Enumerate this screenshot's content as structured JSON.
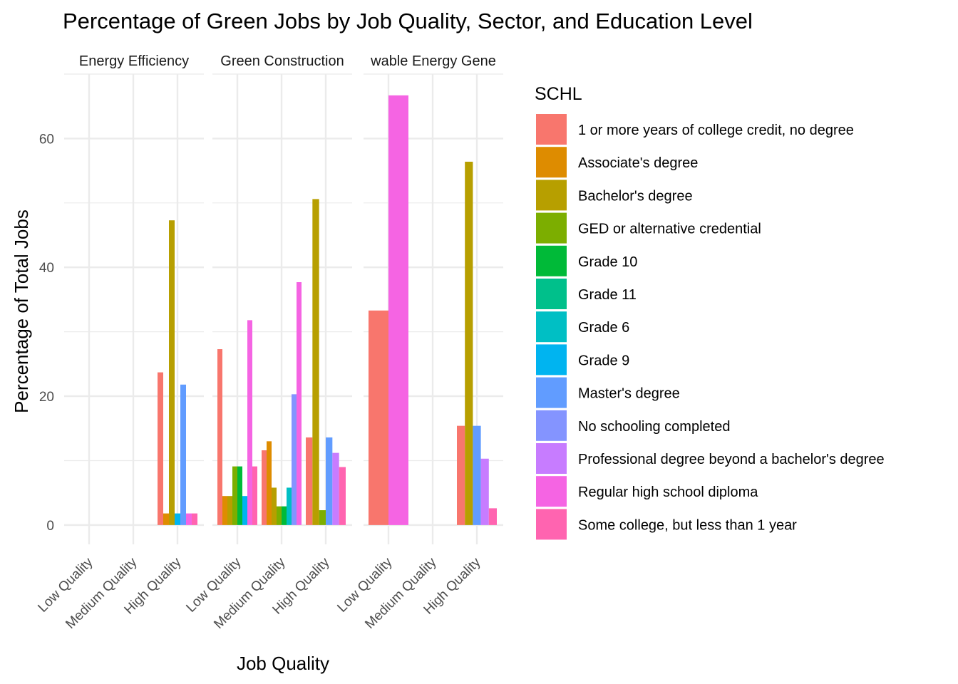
{
  "chart_data": {
    "type": "bar",
    "title": "Percentage of Green Jobs by Job Quality, Sector, and Education Level",
    "xlabel": "Job Quality",
    "ylabel": "Percentage of Total Jobs",
    "ylim": [
      -3,
      70
    ],
    "yticks": [
      0,
      20,
      40,
      60
    ],
    "grid": true,
    "legend_title": "SCHL",
    "legend_position": "right",
    "categories": [
      "Low Quality",
      "Medium Quality",
      "High Quality"
    ],
    "facets": [
      {
        "label": "Energy Efficiency",
        "shown_label": "Energy Efficiency"
      },
      {
        "label": "Green Construction",
        "shown_label": "Green Construction"
      },
      {
        "label": "Renewable Energy Generation",
        "shown_label": "wable Energy Gene"
      }
    ],
    "series": [
      {
        "name": "1 or more years of college credit, no degree",
        "color": "#F8766D",
        "values": [
          [
            null,
            null,
            23.7
          ],
          [
            27.3,
            11.6,
            13.6
          ],
          [
            33.3,
            null,
            15.4
          ]
        ]
      },
      {
        "name": "Associate's degree",
        "color": "#DE8C00",
        "values": [
          [
            null,
            null,
            1.8
          ],
          [
            4.5,
            13.0,
            null
          ],
          [
            null,
            null,
            null
          ]
        ]
      },
      {
        "name": "Bachelor's degree",
        "color": "#B79F00",
        "values": [
          [
            null,
            null,
            47.3
          ],
          [
            4.5,
            5.8,
            50.6
          ],
          [
            null,
            null,
            56.4
          ]
        ]
      },
      {
        "name": "GED or alternative credential",
        "color": "#7CAE00",
        "values": [
          [
            null,
            null,
            null
          ],
          [
            9.1,
            2.9,
            2.3
          ],
          [
            null,
            null,
            null
          ]
        ]
      },
      {
        "name": "Grade 10",
        "color": "#00BA38",
        "values": [
          [
            null,
            null,
            null
          ],
          [
            9.1,
            2.9,
            null
          ],
          [
            null,
            null,
            null
          ]
        ]
      },
      {
        "name": "Grade 11",
        "color": "#00C08B",
        "values": [
          [
            null,
            null,
            null
          ],
          [
            null,
            null,
            null
          ],
          [
            null,
            null,
            null
          ]
        ]
      },
      {
        "name": "Grade 6",
        "color": "#00BFC4",
        "values": [
          [
            null,
            null,
            null
          ],
          [
            null,
            5.8,
            null
          ],
          [
            null,
            null,
            null
          ]
        ]
      },
      {
        "name": "Grade 9",
        "color": "#00B4F0",
        "values": [
          [
            null,
            null,
            1.8
          ],
          [
            4.5,
            null,
            null
          ],
          [
            null,
            null,
            null
          ]
        ]
      },
      {
        "name": "Master's degree",
        "color": "#619CFF",
        "values": [
          [
            null,
            null,
            21.8
          ],
          [
            null,
            null,
            13.6
          ],
          [
            null,
            null,
            15.4
          ]
        ]
      },
      {
        "name": "No schooling completed",
        "color": "#8494FF",
        "values": [
          [
            null,
            null,
            null
          ],
          [
            null,
            20.3,
            null
          ],
          [
            null,
            null,
            null
          ]
        ]
      },
      {
        "name": "Professional degree beyond a bachelor's degree",
        "color": "#C77CFF",
        "values": [
          [
            null,
            null,
            null
          ],
          [
            null,
            null,
            11.2
          ],
          [
            null,
            null,
            10.3
          ]
        ]
      },
      {
        "name": "Regular high school diploma",
        "color": "#F564E3",
        "values": [
          [
            null,
            null,
            1.8
          ],
          [
            31.8,
            37.7,
            null
          ],
          [
            66.7,
            null,
            null
          ]
        ]
      },
      {
        "name": "Some college, but less than 1 year",
        "color": "#FF64B0",
        "values": [
          [
            null,
            null,
            1.8
          ],
          [
            9.1,
            null,
            9.0
          ],
          [
            null,
            null,
            2.6
          ]
        ]
      }
    ],
    "bars": [
      [
        [],
        [],
        [
          {
            "s": 0,
            "v": 23.7
          },
          {
            "s": 1,
            "v": 1.8
          },
          {
            "s": 2,
            "v": 47.3
          },
          {
            "s": 7,
            "v": 1.8
          },
          {
            "s": 8,
            "v": 21.8
          },
          {
            "s": 11,
            "v": 1.8
          },
          {
            "s": 12,
            "v": 1.8
          }
        ]
      ],
      [
        [
          {
            "s": 0,
            "v": 27.3
          },
          {
            "s": 1,
            "v": 4.5
          },
          {
            "s": 2,
            "v": 4.5
          },
          {
            "s": 3,
            "v": 9.1
          },
          {
            "s": 4,
            "v": 9.1
          },
          {
            "s": 7,
            "v": 4.5
          },
          {
            "s": 11,
            "v": 31.8
          },
          {
            "s": 12,
            "v": 9.1
          }
        ],
        [
          {
            "s": 0,
            "v": 11.6
          },
          {
            "s": 1,
            "v": 13.0
          },
          {
            "s": 2,
            "v": 5.8
          },
          {
            "s": 3,
            "v": 2.9
          },
          {
            "s": 4,
            "v": 2.9
          },
          {
            "s": 6,
            "v": 5.8
          },
          {
            "s": 9,
            "v": 20.3
          },
          {
            "s": 11,
            "v": 37.7
          }
        ],
        [
          {
            "s": 0,
            "v": 13.6
          },
          {
            "s": 2,
            "v": 50.6
          },
          {
            "s": 3,
            "v": 2.3
          },
          {
            "s": 8,
            "v": 13.6
          },
          {
            "s": 10,
            "v": 11.2
          },
          {
            "s": 12,
            "v": 9.0
          }
        ]
      ],
      [
        [
          {
            "s": 0,
            "v": 33.3
          },
          {
            "s": 11,
            "v": 66.7
          }
        ],
        [],
        [
          {
            "s": 0,
            "v": 15.4
          },
          {
            "s": 2,
            "v": 56.4
          },
          {
            "s": 8,
            "v": 15.4
          },
          {
            "s": 10,
            "v": 10.3
          },
          {
            "s": 12,
            "v": 2.6
          }
        ]
      ]
    ]
  }
}
